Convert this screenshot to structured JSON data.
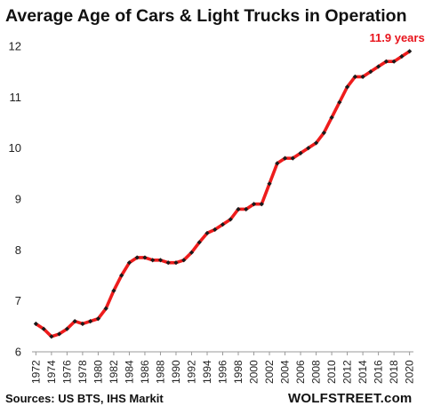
{
  "chart_data": {
    "type": "line",
    "title": "Average Age of Cars & Light Trucks in Operation",
    "annotation": "11.9 years",
    "xlabel": "",
    "ylabel": "",
    "ylim": [
      6,
      12
    ],
    "yticks": [
      6,
      7,
      8,
      9,
      10,
      11,
      12
    ],
    "xticks": [
      1972,
      1974,
      1976,
      1978,
      1980,
      1982,
      1984,
      1986,
      1988,
      1990,
      1992,
      1994,
      1996,
      1998,
      2000,
      2002,
      2004,
      2006,
      2008,
      2010,
      2012,
      2014,
      2016,
      2018,
      2020
    ],
    "grid": false,
    "x": [
      1972,
      1973,
      1974,
      1975,
      1976,
      1977,
      1978,
      1979,
      1980,
      1981,
      1982,
      1983,
      1984,
      1985,
      1986,
      1987,
      1988,
      1989,
      1990,
      1991,
      1992,
      1993,
      1994,
      1995,
      1996,
      1997,
      1998,
      1999,
      2000,
      2001,
      2002,
      2003,
      2004,
      2005,
      2006,
      2007,
      2008,
      2009,
      2010,
      2011,
      2012,
      2013,
      2014,
      2015,
      2016,
      2017,
      2018,
      2019,
      2020
    ],
    "series": [
      {
        "values": [
          6.55,
          6.45,
          6.3,
          6.35,
          6.45,
          6.6,
          6.55,
          6.6,
          6.65,
          6.85,
          7.2,
          7.5,
          7.75,
          7.85,
          7.85,
          7.8,
          7.8,
          7.75,
          7.75,
          7.8,
          7.95,
          8.15,
          8.33,
          8.4,
          8.5,
          8.6,
          8.8,
          8.8,
          8.9,
          8.9,
          9.3,
          9.7,
          9.8,
          9.8,
          9.9,
          10.0,
          10.1,
          10.3,
          10.6,
          10.9,
          11.2,
          11.4,
          11.4,
          11.5,
          11.6,
          11.7,
          11.7,
          11.8,
          11.9
        ]
      }
    ],
    "colors": {
      "line": "#ee1c1c",
      "markers": "#1a1a1a",
      "annotation": "#e8141c",
      "axis": "#999999"
    }
  },
  "footer": {
    "source": "Sources: US BTS, IHS Markit",
    "brand": "WOLFSTREET.com"
  }
}
